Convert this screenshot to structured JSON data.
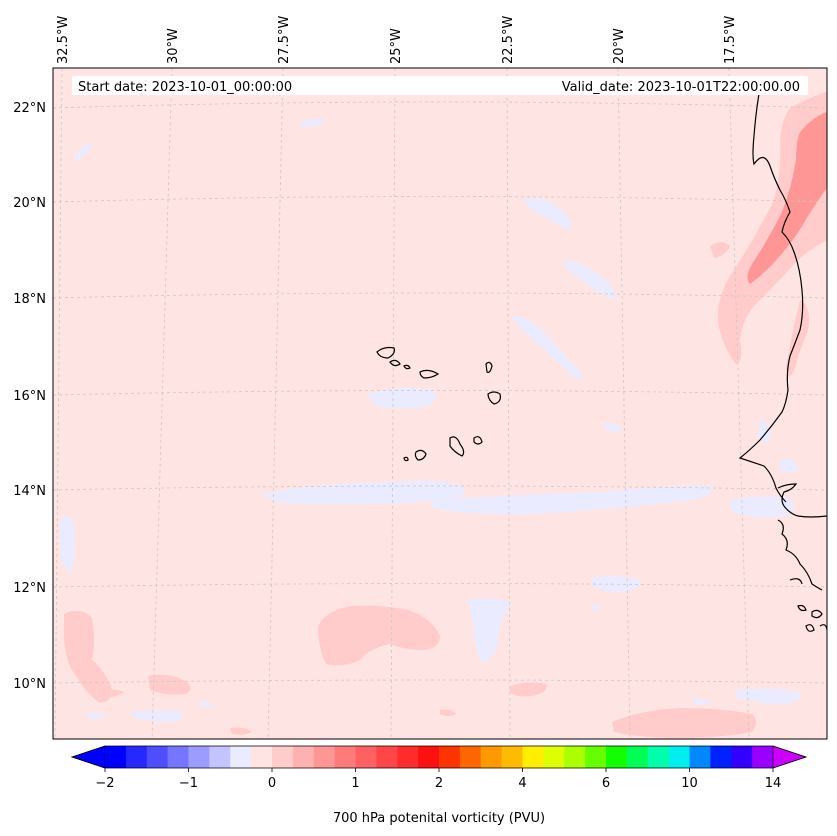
{
  "map": {
    "lon_labels": [
      "32.5°W",
      "30°W",
      "27.5°W",
      "25°W",
      "22.5°W",
      "20°W",
      "17.5°W"
    ],
    "lat_labels": [
      "22°N",
      "20°N",
      "18°N",
      "16°N",
      "14°N",
      "12°N",
      "10°N"
    ],
    "start_date": "Start date: 2023-10-01_00:00:00",
    "valid_date": "Valid_date: 2023-10-01T22:00:00.00"
  },
  "colorbar": {
    "tick_labels": [
      "−2",
      "−1",
      "0",
      "1",
      "2",
      "4",
      "6",
      "10",
      "14"
    ],
    "label": "700 hPa potenital vorticity (PVU)",
    "colors": [
      "#0000ff",
      "#2727ff",
      "#4e4eff",
      "#7575ff",
      "#9c9cff",
      "#c3c3ff",
      "#ebebff",
      "#ffe4e4",
      "#ffcbcb",
      "#ffb0b0",
      "#ff9696",
      "#ff7b7b",
      "#ff6161",
      "#ff4646",
      "#ff2c2c",
      "#ff1010",
      "#ff3300",
      "#ff6600",
      "#ff9900",
      "#ffbb00",
      "#ffee00",
      "#ddff00",
      "#aaff00",
      "#66ff00",
      "#11ff00",
      "#00ff55",
      "#00ffaa",
      "#00eeee",
      "#0088ff",
      "#0022ff",
      "#3300ff",
      "#9900ff"
    ],
    "extend_min_color": "#0000ff",
    "extend_max_color": "#cc00ff"
  },
  "colors": {
    "background_field": "#ffe4e4",
    "weak_negative": "#ebebff",
    "weak_positive": "#ffcbcb",
    "moderate_positive": "#ff9696",
    "coastline": "#000000",
    "gridline": "#bbbbbb"
  }
}
